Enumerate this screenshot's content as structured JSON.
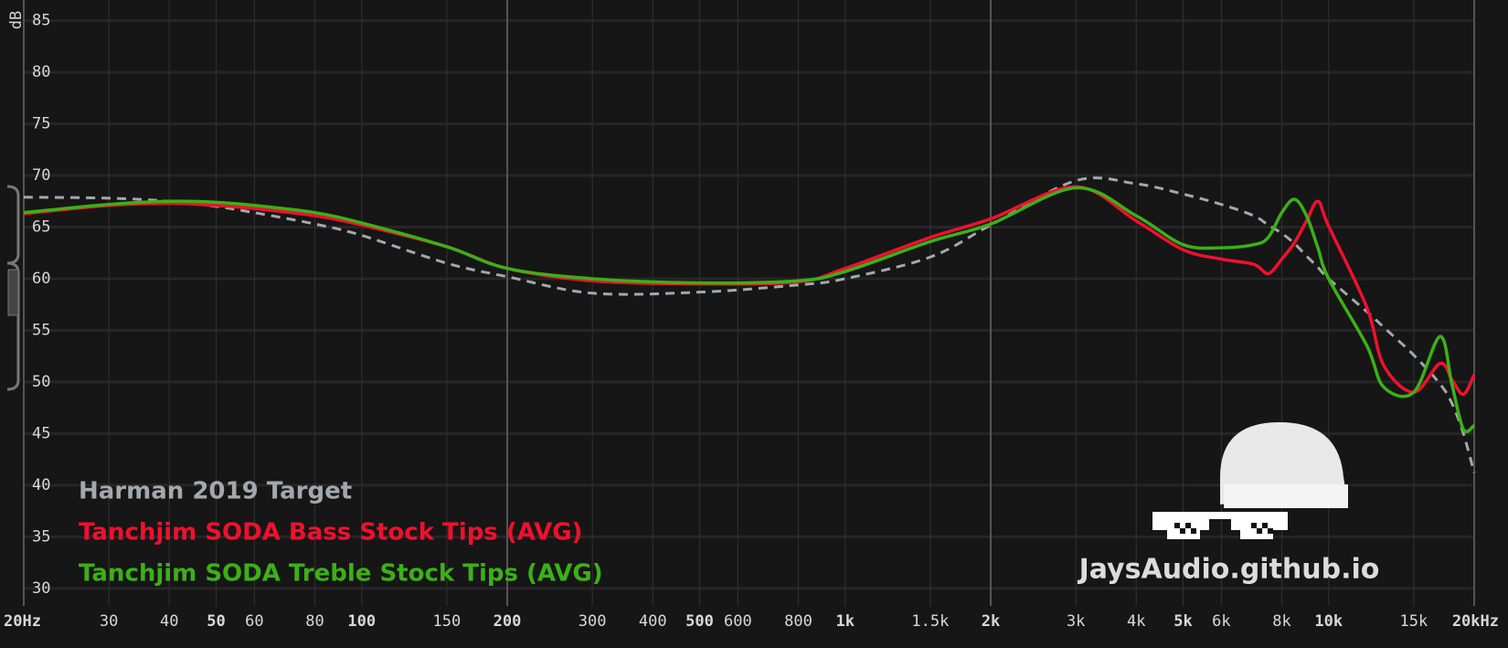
{
  "chart_data": {
    "type": "line",
    "y_label": "dB",
    "watermark": "JaysAudio.github.io",
    "log_x": true,
    "grid": true,
    "xlim": [
      20,
      20000
    ],
    "ylim": [
      28.3,
      87
    ],
    "yticks": [
      30,
      35,
      40,
      45,
      50,
      55,
      60,
      65,
      70,
      75,
      80,
      85
    ],
    "xticks": [
      {
        "value": 20,
        "label": "20Hz"
      },
      30,
      40,
      50,
      60,
      80,
      100,
      150,
      200,
      300,
      400,
      500,
      600,
      800,
      {
        "value": 1000,
        "label": "1k"
      },
      {
        "value": 1500,
        "label": "1.5k"
      },
      {
        "value": 2000,
        "label": "2k"
      },
      {
        "value": 3000,
        "label": "3k"
      },
      {
        "value": 4000,
        "label": "4k"
      },
      {
        "value": 5000,
        "label": "5k"
      },
      {
        "value": 6000,
        "label": "6k"
      },
      {
        "value": 8000,
        "label": "8k"
      },
      {
        "value": 10000,
        "label": "10k"
      },
      {
        "value": 15000,
        "label": "15k"
      },
      {
        "value": 20000,
        "label": "20kHz"
      }
    ],
    "x": [
      20,
      30,
      40,
      50,
      60,
      80,
      100,
      150,
      200,
      300,
      500,
      800,
      1000,
      1500,
      2000,
      3000,
      4000,
      5000,
      6000,
      7000,
      7500,
      8000,
      8500,
      9000,
      9500,
      10000,
      12000,
      13000,
      15000,
      17000,
      18000,
      19000,
      20000
    ],
    "series": [
      {
        "name": "Harman 2019 Target",
        "color": "#a3a8ad",
        "dashed": true,
        "values": [
          67.9,
          67.8,
          67.5,
          67,
          66.4,
          65.3,
          64.2,
          61.5,
          60.2,
          58.6,
          58.7,
          59.4,
          60,
          62.1,
          65.2,
          69.5,
          69.2,
          68.2,
          67.2,
          66.1,
          65.2,
          64.4,
          63.4,
          62.2,
          61.1,
          60,
          56.8,
          55.3,
          52.6,
          49.8,
          47.9,
          45,
          41.2
        ]
      },
      {
        "name": "Tanchjim SODA Bass Stock Tips (AVG)",
        "color": "#f0102e",
        "values": [
          66.3,
          67.1,
          67.3,
          67.1,
          66.8,
          66.1,
          65.2,
          63.1,
          61,
          59.8,
          59.5,
          59.7,
          61,
          64,
          65.8,
          68.9,
          65.6,
          62.8,
          61.9,
          61.4,
          60.5,
          61.9,
          63.5,
          65.6,
          67.5,
          65.1,
          57.2,
          51.6,
          49,
          51.8,
          50.2,
          48.8,
          50.7
        ]
      },
      {
        "name": "Tanchjim SODA Treble Stock Tips (AVG)",
        "color": "#3cb016",
        "values": [
          66.4,
          67.2,
          67.5,
          67.4,
          67.1,
          66.4,
          65.4,
          63.1,
          61,
          60,
          59.6,
          59.8,
          60.7,
          63.6,
          65.3,
          68.8,
          66.1,
          63.3,
          63,
          63.3,
          64,
          66.4,
          67.7,
          66.1,
          63,
          60,
          53.5,
          49.5,
          49,
          54.4,
          49.7,
          45.4,
          45.8
        ]
      }
    ]
  }
}
